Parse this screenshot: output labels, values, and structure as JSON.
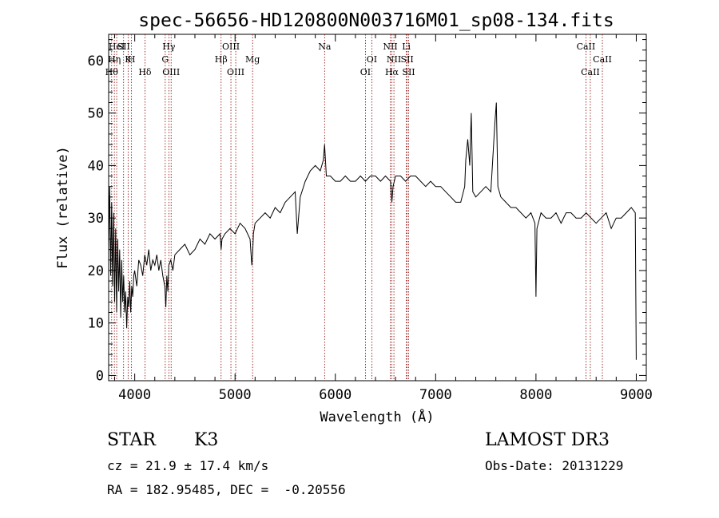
{
  "chart_data": {
    "type": "line",
    "title": "spec-56656-HD120800N003716M01_sp08-134.fits",
    "xlabel": "Wavelength (Å)",
    "ylabel": "Flux (relative)",
    "xlim": [
      3740,
      9100
    ],
    "ylim": [
      -1,
      65
    ],
    "xticks": [
      4000,
      5000,
      6000,
      7000,
      8000,
      9000
    ],
    "yticks": [
      0,
      10,
      20,
      30,
      40,
      50,
      60
    ],
    "grid": false,
    "line_color": "#000000",
    "marker_color": "#8b0000",
    "series": [
      {
        "x": [
          3740,
          3750,
          3760,
          3770,
          3780,
          3790,
          3800,
          3810,
          3820,
          3830,
          3840,
          3850,
          3860,
          3870,
          3880,
          3890,
          3900,
          3910,
          3920,
          3930,
          3940,
          3950,
          3960,
          3970,
          3980,
          3990,
          4000,
          4020,
          4040,
          4060,
          4080,
          4100,
          4120,
          4140,
          4160,
          4180,
          4200,
          4220,
          4240,
          4260,
          4280,
          4300,
          4310,
          4320,
          4330,
          4340,
          4360,
          4380,
          4400,
          4450,
          4500,
          4550,
          4600,
          4650,
          4700,
          4750,
          4800,
          4850,
          4861,
          4870,
          4900,
          4950,
          5000,
          5050,
          5100,
          5150,
          5167,
          5175,
          5183,
          5200,
          5250,
          5300,
          5350,
          5400,
          5450,
          5500,
          5550,
          5600,
          5620,
          5650,
          5700,
          5750,
          5800,
          5850,
          5880,
          5893,
          5910,
          5950,
          6000,
          6050,
          6100,
          6150,
          6200,
          6250,
          6300,
          6350,
          6400,
          6450,
          6500,
          6550,
          6563,
          6575,
          6600,
          6650,
          6700,
          6750,
          6800,
          6850,
          6900,
          6950,
          7000,
          7050,
          7100,
          7150,
          7200,
          7250,
          7290,
          7300,
          7320,
          7340,
          7355,
          7370,
          7400,
          7450,
          7500,
          7550,
          7590,
          7605,
          7620,
          7650,
          7700,
          7750,
          7800,
          7850,
          7900,
          7950,
          7990,
          8000,
          8010,
          8050,
          8100,
          8150,
          8200,
          8250,
          8300,
          8350,
          8400,
          8450,
          8500,
          8550,
          8600,
          8650,
          8700,
          8750,
          8800,
          8850,
          8900,
          8950,
          8990,
          9000
        ],
        "y": [
          24,
          36,
          19,
          33,
          17,
          31,
          14,
          28,
          12,
          26,
          16,
          24,
          11,
          22,
          14,
          19,
          12,
          16,
          9,
          15,
          13,
          18,
          12,
          17,
          15,
          19,
          20,
          17,
          22,
          21,
          19,
          23,
          21,
          24,
          20,
          22,
          21,
          23,
          20,
          22,
          19,
          17,
          13,
          19,
          16,
          21,
          22,
          20,
          23,
          24,
          25,
          23,
          24,
          26,
          25,
          27,
          26,
          27,
          24,
          26,
          27,
          28,
          27,
          29,
          28,
          26,
          21,
          23,
          27,
          29,
          30,
          31,
          30,
          32,
          31,
          33,
          34,
          35,
          27,
          34,
          37,
          39,
          40,
          39,
          41,
          44,
          38,
          38,
          37,
          37,
          38,
          37,
          37,
          38,
          37,
          38,
          38,
          37,
          38,
          37,
          33,
          36,
          38,
          38,
          37,
          38,
          38,
          37,
          36,
          37,
          36,
          36,
          35,
          34,
          33,
          33,
          36,
          41,
          45,
          40,
          50,
          35,
          34,
          35,
          36,
          35,
          48,
          52,
          36,
          34,
          33,
          32,
          32,
          31,
          30,
          31,
          29,
          15,
          28,
          31,
          30,
          30,
          31,
          29,
          31,
          31,
          30,
          30,
          31,
          30,
          29,
          30,
          31,
          28,
          30,
          30,
          31,
          32,
          31,
          3
        ]
      }
    ],
    "line_markers": [
      {
        "x": 3770,
        "label": "Hθ",
        "row": 3
      },
      {
        "x": 3797,
        "label": "Hη",
        "row": 2
      },
      {
        "x": 3820,
        "label": "HeI",
        "row": 1
      },
      {
        "x": 3889,
        "label": "SII",
        "row": 1
      },
      {
        "x": 3934,
        "label": "K",
        "row": 2
      },
      {
        "x": 3968,
        "label": "H",
        "row": 2
      },
      {
        "x": 4102,
        "label": "Hδ",
        "row": 3
      },
      {
        "x": 4304,
        "label": "G",
        "row": 2
      },
      {
        "x": 4340,
        "label": "Hγ",
        "row": 1
      },
      {
        "x": 4363,
        "label": "OIII",
        "row": 3
      },
      {
        "x": 4861,
        "label": "Hβ",
        "row": 2
      },
      {
        "x": 4959,
        "label": "OIII",
        "row": 1
      },
      {
        "x": 5007,
        "label": "OIII",
        "row": 3
      },
      {
        "x": 5175,
        "label": "Mg",
        "row": 2
      },
      {
        "x": 5893,
        "label": "Na",
        "row": 1
      },
      {
        "x": 6300,
        "label": "OI",
        "row": 3
      },
      {
        "x": 6364,
        "label": "OI",
        "row": 2
      },
      {
        "x": 6548,
        "label": "NII",
        "row": 1
      },
      {
        "x": 6563,
        "label": "Hα",
        "row": 3
      },
      {
        "x": 6584,
        "label": "NII",
        "row": 2
      },
      {
        "x": 6708,
        "label": "Li",
        "row": 1
      },
      {
        "x": 6716,
        "label": "SII",
        "row": 2
      },
      {
        "x": 6731,
        "label": "SII",
        "row": 3
      },
      {
        "x": 8498,
        "label": "CaII",
        "row": 1
      },
      {
        "x": 8542,
        "label": "CaII",
        "row": 3
      },
      {
        "x": 8662,
        "label": "CaII",
        "row": 2
      }
    ]
  },
  "info": {
    "object_class": "STAR",
    "subclass": "K3",
    "survey": "LAMOST DR3",
    "cz_line": "cz = 21.9 ± 17.4 km/s",
    "obs_date_line": "Obs-Date: 20131229",
    "coords_line": "RA = 182.95485, DEC =  -0.20556"
  }
}
